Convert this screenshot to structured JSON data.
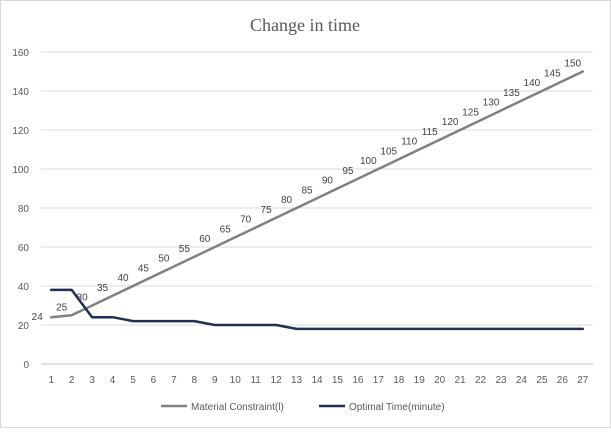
{
  "chart_data": {
    "type": "line",
    "title": "Change in time",
    "xlabel": "",
    "ylabel": "",
    "x": [
      1,
      2,
      3,
      4,
      5,
      6,
      7,
      8,
      9,
      10,
      11,
      12,
      13,
      14,
      15,
      16,
      17,
      18,
      19,
      20,
      21,
      22,
      23,
      24,
      25,
      26,
      27
    ],
    "ylim": [
      0,
      160
    ],
    "yticks": [
      0,
      20,
      40,
      60,
      80,
      100,
      120,
      140,
      160
    ],
    "grid": true,
    "legend_position": "bottom",
    "series": [
      {
        "name": "Material Constraint(l)",
        "color": "#808080",
        "values": [
          24,
          25,
          30,
          35,
          40,
          45,
          50,
          55,
          60,
          65,
          70,
          75,
          80,
          85,
          90,
          95,
          100,
          105,
          110,
          115,
          120,
          125,
          130,
          135,
          140,
          145,
          150
        ],
        "data_labels": true
      },
      {
        "name": "Optimal Time(minute)",
        "color": "#1f3055",
        "values": [
          38,
          38,
          24,
          24,
          22,
          22,
          22,
          22,
          20,
          20,
          20,
          20,
          18,
          18,
          18,
          18,
          18,
          18,
          18,
          18,
          18,
          18,
          18,
          18,
          18,
          18,
          18
        ],
        "data_labels": false
      }
    ]
  }
}
